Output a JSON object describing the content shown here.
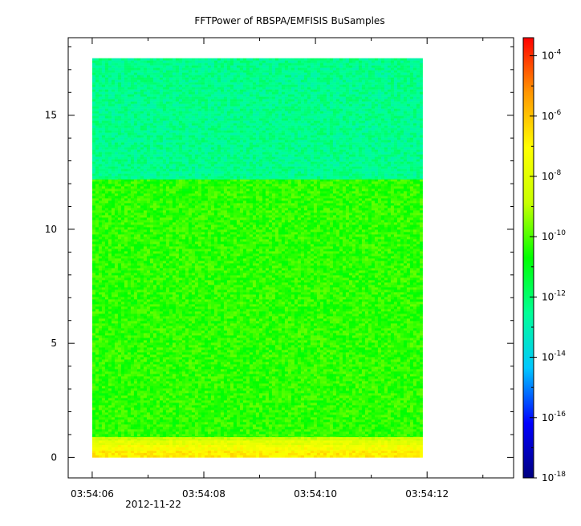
{
  "chart_data": {
    "type": "heatmap",
    "title": "FFTPower of RBSPA/EMFISIS  BuSamples",
    "xlabel": "",
    "ylabel": "",
    "x_ticks": [
      "03:54:06",
      "03:54:08",
      "03:54:10",
      "03:54:12"
    ],
    "x_tick_values": [
      6,
      8,
      10,
      12
    ],
    "x_date_label": "2012-11-22",
    "xlim": [
      5.57,
      13.55
    ],
    "x_data_range": [
      6.0,
      11.92
    ],
    "y_ticks": [
      0,
      5,
      10,
      15
    ],
    "ylim": [
      -0.9,
      18.4
    ],
    "y_data_range": [
      0.0,
      17.5
    ],
    "colorbar": {
      "scale": "log",
      "range_exp": [
        -18,
        -3.4
      ],
      "tick_labels": [
        {
          "base": "10",
          "exp": "-4",
          "value_exp": -4
        },
        {
          "base": "10",
          "exp": "-6",
          "value_exp": -6
        },
        {
          "base": "10",
          "exp": "-8",
          "value_exp": -8
        },
        {
          "base": "10",
          "exp": "-10",
          "value_exp": -10
        },
        {
          "base": "10",
          "exp": "-12",
          "value_exp": -12
        },
        {
          "base": "10",
          "exp": "-14",
          "value_exp": -14
        },
        {
          "base": "10",
          "exp": "-16",
          "value_exp": -16
        },
        {
          "base": "10",
          "exp": "-18",
          "value_exp": -18
        }
      ],
      "colors": [
        "#000080",
        "#0000ff",
        "#00c8ff",
        "#00ff96",
        "#00ff00",
        "#c8ff00",
        "#ffff00",
        "#ff9600",
        "#ff0000"
      ]
    },
    "bands": [
      {
        "y_from": 0.0,
        "y_to": 0.3,
        "power_exp": -6.8
      },
      {
        "y_from": 0.3,
        "y_to": 0.55,
        "power_exp": -7.3
      },
      {
        "y_from": 0.55,
        "y_to": 0.75,
        "power_exp": -7.9
      },
      {
        "y_from": 0.75,
        "y_to": 0.9,
        "power_exp": -8.6
      },
      {
        "y_from": 0.9,
        "y_to": 12.2,
        "power_exp": -10.3
      },
      {
        "y_from": 12.2,
        "y_to": 17.5,
        "power_exp": -12.4
      }
    ]
  }
}
